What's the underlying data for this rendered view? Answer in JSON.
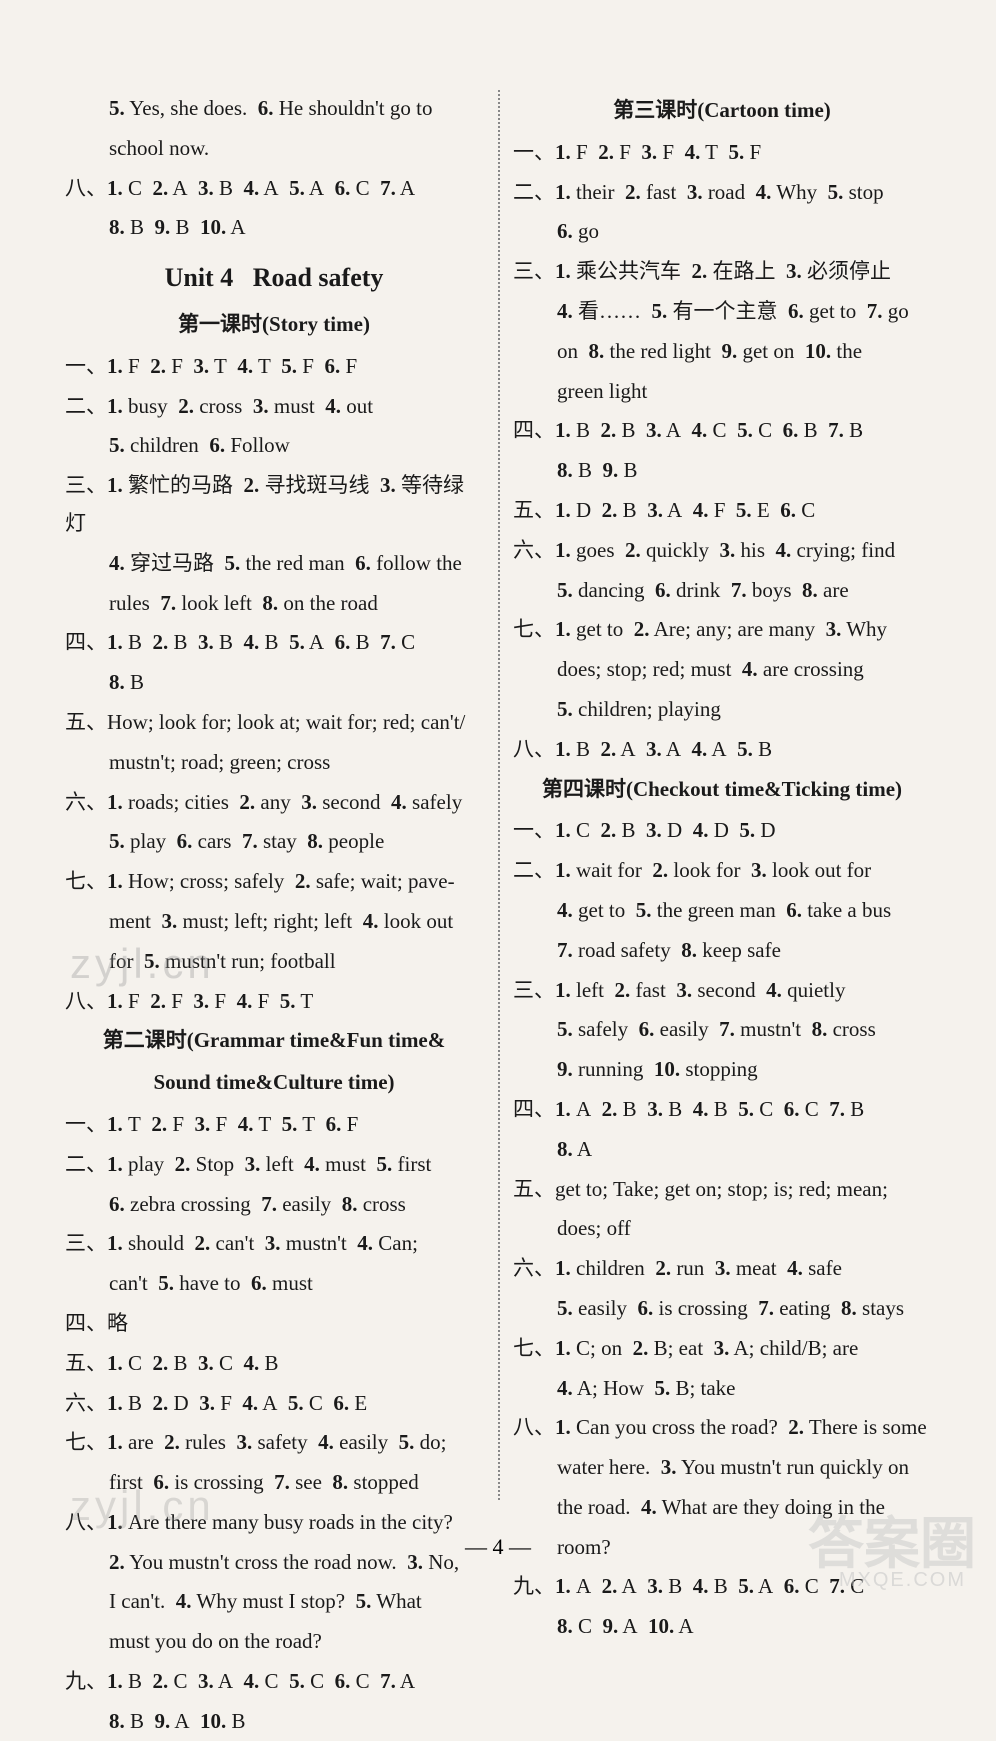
{
  "left": {
    "lines": [
      {
        "cls": "line indent",
        "html": "<span class='num'>5.</span> Yes, she does.&nbsp;&nbsp;<span class='num'>6.</span> He shouldn't go to"
      },
      {
        "cls": "line indent",
        "html": "school now."
      },
      {
        "cls": "line",
        "html": "<span class='cn'>八、</span><span class='num'>1.</span> C&nbsp;&nbsp;<span class='num'>2.</span> A&nbsp;&nbsp;<span class='num'>3.</span> B&nbsp;&nbsp;<span class='num'>4.</span> A&nbsp;&nbsp;<span class='num'>5.</span> A&nbsp;&nbsp;<span class='num'>6.</span> C&nbsp;&nbsp;<span class='num'>7.</span> A"
      },
      {
        "cls": "line indent",
        "html": "<span class='num'>8.</span> B&nbsp;&nbsp;<span class='num'>9.</span> B&nbsp;&nbsp;<span class='num'>10.</span> A"
      }
    ],
    "unit_header": "Unit 4&nbsp;&nbsp;&nbsp;Road safety",
    "lesson1_header": "第一课时(Story time)",
    "lesson1": [
      {
        "cls": "line",
        "html": "<span class='cn'>一、</span><span class='num'>1.</span> F&nbsp;&nbsp;<span class='num'>2.</span> F&nbsp;&nbsp;<span class='num'>3.</span> T&nbsp;&nbsp;<span class='num'>4.</span> T&nbsp;&nbsp;<span class='num'>5.</span> F&nbsp;&nbsp;<span class='num'>6.</span> F"
      },
      {
        "cls": "line",
        "html": "<span class='cn'>二、</span><span class='num'>1.</span> busy&nbsp;&nbsp;<span class='num'>2.</span> cross&nbsp;&nbsp;<span class='num'>3.</span> must&nbsp;&nbsp;<span class='num'>4.</span> out"
      },
      {
        "cls": "line indent",
        "html": "<span class='num'>5.</span> children&nbsp;&nbsp;<span class='num'>6.</span> Follow"
      },
      {
        "cls": "line",
        "html": "<span class='cn'>三、</span><span class='num'>1.</span> <span class='cn'>繁忙的马路</span>&nbsp;&nbsp;<span class='num'>2.</span> <span class='cn'>寻找斑马线</span>&nbsp;&nbsp;<span class='num'>3.</span> <span class='cn'>等待绿灯</span>"
      },
      {
        "cls": "line indent",
        "html": "<span class='num'>4.</span> <span class='cn'>穿过马路</span>&nbsp;&nbsp;<span class='num'>5.</span> the red man&nbsp;&nbsp;<span class='num'>6.</span> follow the"
      },
      {
        "cls": "line indent",
        "html": "rules&nbsp;&nbsp;<span class='num'>7.</span> look left&nbsp;&nbsp;<span class='num'>8.</span> on the road"
      },
      {
        "cls": "line",
        "html": "<span class='cn'>四、</span><span class='num'>1.</span> B&nbsp;&nbsp;<span class='num'>2.</span> B&nbsp;&nbsp;<span class='num'>3.</span> B&nbsp;&nbsp;<span class='num'>4.</span> B&nbsp;&nbsp;<span class='num'>5.</span> A&nbsp;&nbsp;<span class='num'>6.</span> B&nbsp;&nbsp;<span class='num'>7.</span> C"
      },
      {
        "cls": "line indent",
        "html": "<span class='num'>8.</span> B"
      },
      {
        "cls": "line",
        "html": "<span class='cn'>五、</span>How; look for; look at; wait for; red; can't/"
      },
      {
        "cls": "line indent",
        "html": "mustn't; road; green; cross"
      },
      {
        "cls": "line",
        "html": "<span class='cn'>六、</span><span class='num'>1.</span> roads; cities&nbsp;&nbsp;<span class='num'>2.</span> any&nbsp;&nbsp;<span class='num'>3.</span> second&nbsp;&nbsp;<span class='num'>4.</span> safely"
      },
      {
        "cls": "line indent",
        "html": "<span class='num'>5.</span> play&nbsp;&nbsp;<span class='num'>6.</span> cars&nbsp;&nbsp;<span class='num'>7.</span> stay&nbsp;&nbsp;<span class='num'>8.</span> people"
      },
      {
        "cls": "line",
        "html": "<span class='cn'>七、</span><span class='num'>1.</span> How; cross; safely&nbsp;&nbsp;<span class='num'>2.</span> safe; wait; pave-"
      },
      {
        "cls": "line indent",
        "html": "ment&nbsp;&nbsp;<span class='num'>3.</span> must; left; right; left&nbsp;&nbsp;<span class='num'>4.</span> look out"
      },
      {
        "cls": "line indent",
        "html": "for&nbsp;&nbsp;<span class='num'>5.</span> mustn't run; football"
      },
      {
        "cls": "line",
        "html": "<span class='cn'>八、</span><span class='num'>1.</span> F&nbsp;&nbsp;<span class='num'>2.</span> F&nbsp;&nbsp;<span class='num'>3.</span> F&nbsp;&nbsp;<span class='num'>4.</span> F&nbsp;&nbsp;<span class='num'>5.</span> T"
      }
    ],
    "lesson2_header_a": "第二课时(Grammar time&Fun time&",
    "lesson2_header_b": "Sound time&Culture time)",
    "lesson2": [
      {
        "cls": "line",
        "html": "<span class='cn'>一、</span><span class='num'>1.</span> T&nbsp;&nbsp;<span class='num'>2.</span> F&nbsp;&nbsp;<span class='num'>3.</span> F&nbsp;&nbsp;<span class='num'>4.</span> T&nbsp;&nbsp;<span class='num'>5.</span> T&nbsp;&nbsp;<span class='num'>6.</span> F"
      },
      {
        "cls": "line",
        "html": "<span class='cn'>二、</span><span class='num'>1.</span> play&nbsp;&nbsp;<span class='num'>2.</span> Stop&nbsp;&nbsp;<span class='num'>3.</span> left&nbsp;&nbsp;<span class='num'>4.</span> must&nbsp;&nbsp;<span class='num'>5.</span> first"
      },
      {
        "cls": "line indent",
        "html": "<span class='num'>6.</span> zebra crossing&nbsp;&nbsp;<span class='num'>7.</span> easily&nbsp;&nbsp;<span class='num'>8.</span> cross"
      },
      {
        "cls": "line",
        "html": "<span class='cn'>三、</span><span class='num'>1.</span> should&nbsp;&nbsp;<span class='num'>2.</span> can't&nbsp;&nbsp;<span class='num'>3.</span> mustn't&nbsp;&nbsp;<span class='num'>4.</span> Can;"
      },
      {
        "cls": "line indent",
        "html": "can't&nbsp;&nbsp;<span class='num'>5.</span> have to&nbsp;&nbsp;<span class='num'>6.</span> must"
      },
      {
        "cls": "line",
        "html": "<span class='cn'>四、略</span>"
      },
      {
        "cls": "line",
        "html": "<span class='cn'>五、</span><span class='num'>1.</span> C&nbsp;&nbsp;<span class='num'>2.</span> B&nbsp;&nbsp;<span class='num'>3.</span> C&nbsp;&nbsp;<span class='num'>4.</span> B"
      },
      {
        "cls": "line",
        "html": "<span class='cn'>六、</span><span class='num'>1.</span> B&nbsp;&nbsp;<span class='num'>2.</span> D&nbsp;&nbsp;<span class='num'>3.</span> F&nbsp;&nbsp;<span class='num'>4.</span> A&nbsp;&nbsp;<span class='num'>5.</span> C&nbsp;&nbsp;<span class='num'>6.</span> E"
      },
      {
        "cls": "line",
        "html": "<span class='cn'>七、</span><span class='num'>1.</span> are&nbsp;&nbsp;<span class='num'>2.</span> rules&nbsp;&nbsp;<span class='num'>3.</span> safety&nbsp;&nbsp;<span class='num'>4.</span> easily&nbsp;&nbsp;<span class='num'>5.</span> do;"
      },
      {
        "cls": "line indent",
        "html": "first&nbsp;&nbsp;<span class='num'>6.</span> is crossing&nbsp;&nbsp;<span class='num'>7.</span> see&nbsp;&nbsp;<span class='num'>8.</span> stopped"
      },
      {
        "cls": "line",
        "html": "<span class='cn'>八、</span><span class='num'>1.</span> Are there many busy roads in the city?"
      },
      {
        "cls": "line indent",
        "html": "<span class='num'>2.</span> You mustn't cross the road now.&nbsp;&nbsp;<span class='num'>3.</span> No,"
      },
      {
        "cls": "line indent",
        "html": "I can't.&nbsp;&nbsp;<span class='num'>4.</span> Why must I stop?&nbsp;&nbsp;<span class='num'>5.</span> What"
      },
      {
        "cls": "line indent",
        "html": "must you do on the road?"
      },
      {
        "cls": "line",
        "html": "<span class='cn'>九、</span><span class='num'>1.</span> B&nbsp;&nbsp;<span class='num'>2.</span> C&nbsp;&nbsp;<span class='num'>3.</span> A&nbsp;&nbsp;<span class='num'>4.</span> C&nbsp;&nbsp;<span class='num'>5.</span> C&nbsp;&nbsp;<span class='num'>6.</span> C&nbsp;&nbsp;<span class='num'>7.</span> A"
      },
      {
        "cls": "line indent",
        "html": "<span class='num'>8.</span> B&nbsp;&nbsp;<span class='num'>9.</span> A&nbsp;&nbsp;<span class='num'>10.</span> B"
      }
    ]
  },
  "right": {
    "lesson3_header": "第三课时(Cartoon time)",
    "lesson3": [
      {
        "cls": "line",
        "html": "<span class='cn'>一、</span><span class='num'>1.</span> F&nbsp;&nbsp;<span class='num'>2.</span> F&nbsp;&nbsp;<span class='num'>3.</span> F&nbsp;&nbsp;<span class='num'>4.</span> T&nbsp;&nbsp;<span class='num'>5.</span> F"
      },
      {
        "cls": "line",
        "html": "<span class='cn'>二、</span><span class='num'>1.</span> their&nbsp;&nbsp;<span class='num'>2.</span> fast&nbsp;&nbsp;<span class='num'>3.</span> road&nbsp;&nbsp;<span class='num'>4.</span> Why&nbsp;&nbsp;<span class='num'>5.</span> stop"
      },
      {
        "cls": "line indent",
        "html": "<span class='num'>6.</span> go"
      },
      {
        "cls": "line",
        "html": "<span class='cn'>三、</span><span class='num'>1.</span> <span class='cn'>乘公共汽车</span>&nbsp;&nbsp;<span class='num'>2.</span> <span class='cn'>在路上</span>&nbsp;&nbsp;<span class='num'>3.</span> <span class='cn'>必须停止</span>"
      },
      {
        "cls": "line indent",
        "html": "<span class='num'>4.</span> <span class='cn'>看……</span>&nbsp;&nbsp;<span class='num'>5.</span> <span class='cn'>有一个主意</span>&nbsp;&nbsp;<span class='num'>6.</span> get to&nbsp;&nbsp;<span class='num'>7.</span> go"
      },
      {
        "cls": "line indent",
        "html": "on&nbsp;&nbsp;<span class='num'>8.</span> the red light&nbsp;&nbsp;<span class='num'>9.</span> get on&nbsp;&nbsp;<span class='num'>10.</span> the"
      },
      {
        "cls": "line indent",
        "html": "green light"
      },
      {
        "cls": "line",
        "html": "<span class='cn'>四、</span><span class='num'>1.</span> B&nbsp;&nbsp;<span class='num'>2.</span> B&nbsp;&nbsp;<span class='num'>3.</span> A&nbsp;&nbsp;<span class='num'>4.</span> C&nbsp;&nbsp;<span class='num'>5.</span> C&nbsp;&nbsp;<span class='num'>6.</span> B&nbsp;&nbsp;<span class='num'>7.</span> B"
      },
      {
        "cls": "line indent",
        "html": "<span class='num'>8.</span> B&nbsp;&nbsp;<span class='num'>9.</span> B"
      },
      {
        "cls": "line",
        "html": "<span class='cn'>五、</span><span class='num'>1.</span> D&nbsp;&nbsp;<span class='num'>2.</span> B&nbsp;&nbsp;<span class='num'>3.</span> A&nbsp;&nbsp;<span class='num'>4.</span> F&nbsp;&nbsp;<span class='num'>5.</span> E&nbsp;&nbsp;<span class='num'>6.</span> C"
      },
      {
        "cls": "line",
        "html": "<span class='cn'>六、</span><span class='num'>1.</span> goes&nbsp;&nbsp;<span class='num'>2.</span> quickly&nbsp;&nbsp;<span class='num'>3.</span> his&nbsp;&nbsp;<span class='num'>4.</span> crying; find"
      },
      {
        "cls": "line indent",
        "html": "<span class='num'>5.</span> dancing&nbsp;&nbsp;<span class='num'>6.</span> drink&nbsp;&nbsp;<span class='num'>7.</span> boys&nbsp;&nbsp;<span class='num'>8.</span> are"
      },
      {
        "cls": "line",
        "html": "<span class='cn'>七、</span><span class='num'>1.</span> get to&nbsp;&nbsp;<span class='num'>2.</span> Are; any; are many&nbsp;&nbsp;<span class='num'>3.</span> Why"
      },
      {
        "cls": "line indent",
        "html": "does; stop; red; must&nbsp;&nbsp;<span class='num'>4.</span> are crossing"
      },
      {
        "cls": "line indent",
        "html": "<span class='num'>5.</span> children; playing"
      },
      {
        "cls": "line",
        "html": "<span class='cn'>八、</span><span class='num'>1.</span> B&nbsp;&nbsp;<span class='num'>2.</span> A&nbsp;&nbsp;<span class='num'>3.</span> A&nbsp;&nbsp;<span class='num'>4.</span> A&nbsp;&nbsp;<span class='num'>5.</span> B"
      }
    ],
    "lesson4_header": "第四课时(Checkout time&Ticking time)",
    "lesson4": [
      {
        "cls": "line",
        "html": "<span class='cn'>一、</span><span class='num'>1.</span> C&nbsp;&nbsp;<span class='num'>2.</span> B&nbsp;&nbsp;<span class='num'>3.</span> D&nbsp;&nbsp;<span class='num'>4.</span> D&nbsp;&nbsp;<span class='num'>5.</span> D"
      },
      {
        "cls": "line",
        "html": "<span class='cn'>二、</span><span class='num'>1.</span> wait for&nbsp;&nbsp;<span class='num'>2.</span> look for&nbsp;&nbsp;<span class='num'>3.</span> look out for"
      },
      {
        "cls": "line indent",
        "html": "<span class='num'>4.</span> get to&nbsp;&nbsp;<span class='num'>5.</span> the green man&nbsp;&nbsp;<span class='num'>6.</span> take a bus"
      },
      {
        "cls": "line indent",
        "html": "<span class='num'>7.</span> road safety&nbsp;&nbsp;<span class='num'>8.</span> keep safe"
      },
      {
        "cls": "line",
        "html": "<span class='cn'>三、</span><span class='num'>1.</span> left&nbsp;&nbsp;<span class='num'>2.</span> fast&nbsp;&nbsp;<span class='num'>3.</span> second&nbsp;&nbsp;<span class='num'>4.</span> quietly"
      },
      {
        "cls": "line indent",
        "html": "<span class='num'>5.</span> safely&nbsp;&nbsp;<span class='num'>6.</span> easily&nbsp;&nbsp;<span class='num'>7.</span> mustn't&nbsp;&nbsp;<span class='num'>8.</span> cross"
      },
      {
        "cls": "line indent",
        "html": "<span class='num'>9.</span> running&nbsp;&nbsp;<span class='num'>10.</span> stopping"
      },
      {
        "cls": "line",
        "html": "<span class='cn'>四、</span><span class='num'>1.</span> A&nbsp;&nbsp;<span class='num'>2.</span> B&nbsp;&nbsp;<span class='num'>3.</span> B&nbsp;&nbsp;<span class='num'>4.</span> B&nbsp;&nbsp;<span class='num'>5.</span> C&nbsp;&nbsp;<span class='num'>6.</span> C&nbsp;&nbsp;<span class='num'>7.</span> B"
      },
      {
        "cls": "line indent",
        "html": "<span class='num'>8.</span> A"
      },
      {
        "cls": "line",
        "html": "<span class='cn'>五、</span>get to; Take; get on; stop; is; red; mean;"
      },
      {
        "cls": "line indent",
        "html": "does; off"
      },
      {
        "cls": "line",
        "html": "<span class='cn'>六、</span><span class='num'>1.</span> children&nbsp;&nbsp;<span class='num'>2.</span> run&nbsp;&nbsp;<span class='num'>3.</span> meat&nbsp;&nbsp;<span class='num'>4.</span> safe"
      },
      {
        "cls": "line indent",
        "html": "<span class='num'>5.</span> easily&nbsp;&nbsp;<span class='num'>6.</span> is crossing&nbsp;&nbsp;<span class='num'>7.</span> eating&nbsp;&nbsp;<span class='num'>8.</span> stays"
      },
      {
        "cls": "line",
        "html": "<span class='cn'>七、</span><span class='num'>1.</span> C; on&nbsp;&nbsp;<span class='num'>2.</span> B; eat&nbsp;&nbsp;<span class='num'>3.</span> A; child/B; are"
      },
      {
        "cls": "line indent",
        "html": "<span class='num'>4.</span> A; How&nbsp;&nbsp;<span class='num'>5.</span> B; take"
      },
      {
        "cls": "line",
        "html": "<span class='cn'>八、</span><span class='num'>1.</span> Can you cross the road?&nbsp;&nbsp;<span class='num'>2.</span> There is some"
      },
      {
        "cls": "line indent",
        "html": "water here.&nbsp;&nbsp;<span class='num'>3.</span> You mustn't run quickly on"
      },
      {
        "cls": "line indent",
        "html": "the road.&nbsp;&nbsp;<span class='num'>4.</span> What are they doing in the"
      },
      {
        "cls": "line indent",
        "html": "room?"
      },
      {
        "cls": "line",
        "html": "<span class='cn'>九、</span><span class='num'>1.</span> A&nbsp;&nbsp;<span class='num'>2.</span> A&nbsp;&nbsp;<span class='num'>3.</span> B&nbsp;&nbsp;<span class='num'>4.</span> B&nbsp;&nbsp;<span class='num'>5.</span> A&nbsp;&nbsp;<span class='num'>6.</span> C&nbsp;&nbsp;<span class='num'>7.</span> C"
      },
      {
        "cls": "line indent",
        "html": "<span class='num'>8.</span> C&nbsp;&nbsp;<span class='num'>9.</span> A&nbsp;&nbsp;<span class='num'>10.</span> A"
      }
    ]
  },
  "pagenum": "— 4 —",
  "watermarks": {
    "w1": "zyjl.cn",
    "w2": "zyjl.cn",
    "w3": "答案圈",
    "w4": "MXQE.COM"
  }
}
